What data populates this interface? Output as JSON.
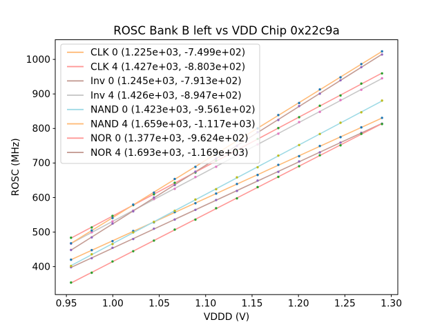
{
  "figure": {
    "title": "ROSC Bank B left vs VDD Chip 0x22c9a",
    "xlabel": "VDDD (V)",
    "ylabel": "ROSC (MHz)"
  },
  "chart_data": {
    "type": "scatter",
    "title": "ROSC Bank B left vs VDD Chip 0x22c9a",
    "xlabel": "VDDD (V)",
    "ylabel": "ROSC (MHz)",
    "grid": false,
    "legend_position": "upper-left",
    "xlim": [
      0.938,
      1.307
    ],
    "ylim": [
      319,
      1057
    ],
    "xticks": [
      0.95,
      1.0,
      1.05,
      1.1,
      1.15,
      1.2,
      1.25,
      1.3
    ],
    "xtick_labels": [
      "0.95",
      "1.00",
      "1.05",
      "1.10",
      "1.15",
      "1.20",
      "1.25",
      "1.30"
    ],
    "yticks": [
      400,
      500,
      600,
      700,
      800,
      900,
      1000
    ],
    "ytick_labels": [
      "400",
      "500",
      "600",
      "700",
      "800",
      "900",
      "1000"
    ],
    "x_values": [
      0.955,
      0.9773,
      0.9997,
      1.022,
      1.0443,
      1.0667,
      1.089,
      1.1113,
      1.1337,
      1.156,
      1.1783,
      1.2007,
      1.223,
      1.2453,
      1.2677,
      1.29
    ],
    "fit_note": "legend shows (slope, intercept) of linear fit ROSC = slope*VDDD + intercept",
    "series": [
      {
        "name": "CLK 0",
        "label": "CLK 0 (1.225e+03, -7.499e+02)",
        "slope": 1225,
        "intercept": -749.9,
        "line_color": "#ffbb78",
        "marker_color": "#1f77b4"
      },
      {
        "name": "CLK 4",
        "label": "CLK 4 (1.427e+03, -8.803e+02)",
        "slope": 1427,
        "intercept": -880.3,
        "line_color": "#ff9896",
        "marker_color": "#2ca02c"
      },
      {
        "name": "Inv 0",
        "label": "Inv 0 (1.245e+03, -7.913e+02)",
        "slope": 1245,
        "intercept": -791.3,
        "line_color": "#c49c94",
        "marker_color": "#9467bd"
      },
      {
        "name": "Inv 4",
        "label": "Inv 4 (1.426e+03, -8.947e+02)",
        "slope": 1426,
        "intercept": -894.7,
        "line_color": "#c7c7c7",
        "marker_color": "#e377c2"
      },
      {
        "name": "NAND 0",
        "label": "NAND 0 (1.423e+03, -9.561e+02)",
        "slope": 1423,
        "intercept": -956.1,
        "line_color": "#9edae5",
        "marker_color": "#bcbd22"
      },
      {
        "name": "NAND 4",
        "label": "NAND 4 (1.659e+03, -1.117e+03)",
        "slope": 1659,
        "intercept": -1117,
        "line_color": "#ffbb78",
        "marker_color": "#1f77b4"
      },
      {
        "name": "NOR 0",
        "label": "NOR 0 (1.377e+03, -9.624e+02)",
        "slope": 1377,
        "intercept": -962.4,
        "line_color": "#ff9896",
        "marker_color": "#2ca02c"
      },
      {
        "name": "NOR 4",
        "label": "NOR 4 (1.693e+03, -1.169e+03)",
        "slope": 1693,
        "intercept": -1169,
        "line_color": "#c49c94",
        "marker_color": "#9467bd"
      }
    ],
    "style": {
      "axes_color": "#000000",
      "legend_border_color": "#cccccc",
      "background_color": "#ffffff"
    }
  }
}
